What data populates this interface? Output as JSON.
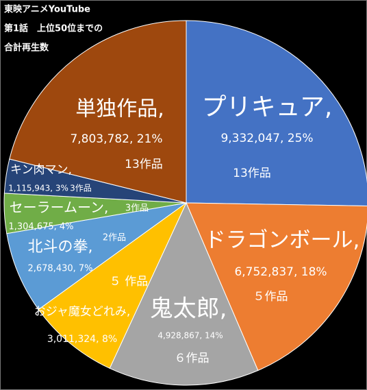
{
  "chart_data": {
    "type": "pie",
    "title_lines": [
      "東映アニメYouTube",
      "第1話　上位50位までの",
      "合計再生数"
    ],
    "categories": [
      "プリキュア,",
      "ドラゴンボール,",
      "鬼太郎,",
      "おジャ魔女どれみ,",
      "北斗の拳,",
      "セーラームーン,",
      "キン肉マン,",
      "単独作品,"
    ],
    "values": [
      9332047,
      6752837,
      4928867,
      3011324,
      2678430,
      1304675,
      1115943,
      7803782
    ],
    "value_labels": [
      "9,332,047, 25%",
      "6,752,837, 18%",
      "4,928,867,  14%",
      "3,011,324,  8%",
      "2,678,430, 7%",
      "1,304,675, 4%",
      "1,115,943, 3%",
      "7,803,782, 21%"
    ],
    "counts": [
      "13作品",
      "５作品",
      "６作品",
      "５ 作品",
      "2作品",
      "3作品",
      "3作品",
      "13作品"
    ],
    "colors": [
      "#4472c4",
      "#ed7d31",
      "#a5a5a5",
      "#ffc000",
      "#5b9bd5",
      "#70ad47",
      "#264478",
      "#9e480e"
    ]
  }
}
